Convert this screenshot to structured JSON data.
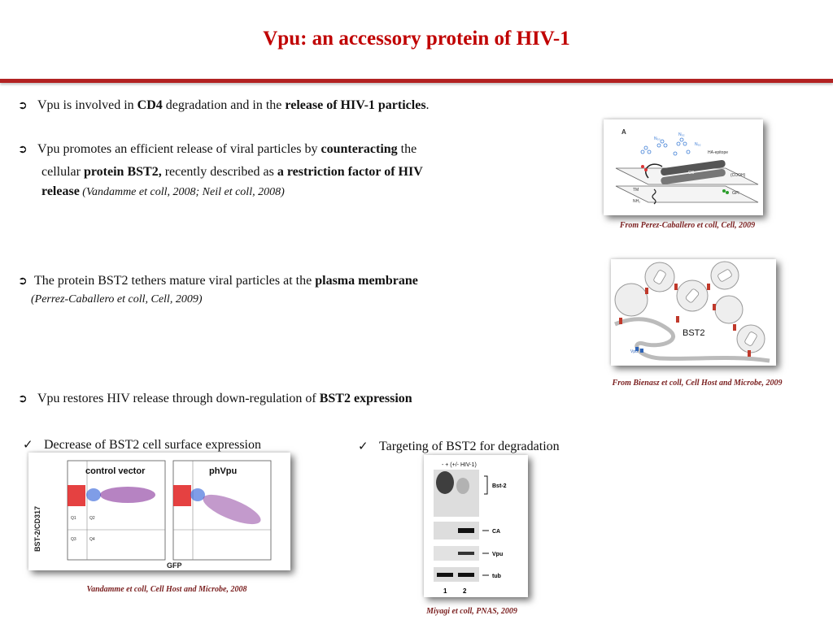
{
  "title": "Vpu: an accessory protein of HIV-1",
  "bullets": {
    "b1": {
      "pre": "Vpu is involved in ",
      "bold1": "CD4",
      "mid": " degradation and in the ",
      "bold2": "release of HIV-1 particles",
      "post": "."
    },
    "b2": {
      "pre": "Vpu promotes an efficient release of viral particles by ",
      "bold1": "counteracting",
      "post1": " the",
      "line2_pre": "cellular ",
      "bold2": "protein BST2,",
      "line2_mid": " recently described as ",
      "bold3": "a restriction factor of HIV",
      "bold4": "release",
      "cite": " (Vandamme et coll, 2008; Neil et coll, 2008)"
    },
    "b3": {
      "pre": "The protein BST2 tethers mature viral particles at the ",
      "bold": "plasma membrane",
      "cite": "(Perrez-Caballero et coll, Cell, 2009)"
    },
    "b4": {
      "pre": "Vpu restores HIV release through down-regulation of ",
      "bold": "BST2 expression"
    }
  },
  "checks": {
    "c1": "Decrease of BST2 cell surface expression",
    "c2": "Targeting of  BST2 for degradation"
  },
  "figure_a": {
    "panel_label": "A",
    "labels": {
      "n1": "N₅₀",
      "n2": "N₉₂",
      "n3": "N₉₂",
      "ha": "HA-epitope",
      "cc": "CC",
      "cooh": "(COOH)",
      "gpi": "GPI",
      "tm": "TM",
      "nh2": "NH₂"
    },
    "caption": "From Perez-Caballero et coll, Cell, 2009"
  },
  "figure_b": {
    "label": "BST2",
    "vpu": "Vpu",
    "caption": "From Bienasz et coll, Cell Host and Microbe, 2009"
  },
  "facs": {
    "panel1": "control vector",
    "panel2": "phVpu",
    "ylabel": "BST-2/CD317",
    "xlabel": "GFP",
    "q1": "Q1",
    "q2": "Q2",
    "q3": "Q3",
    "q4": "Q4",
    "caption": "Vandamme et coll, Cell Host and Microbe, 2008"
  },
  "blot": {
    "header": "-  +  (+/- HIV-1)",
    "bands": [
      "Bst-2",
      "CA",
      "Vpu",
      "tub"
    ],
    "lanes": [
      "1",
      "2"
    ],
    "caption": "Miyagi et coll, PNAS, 2009"
  }
}
